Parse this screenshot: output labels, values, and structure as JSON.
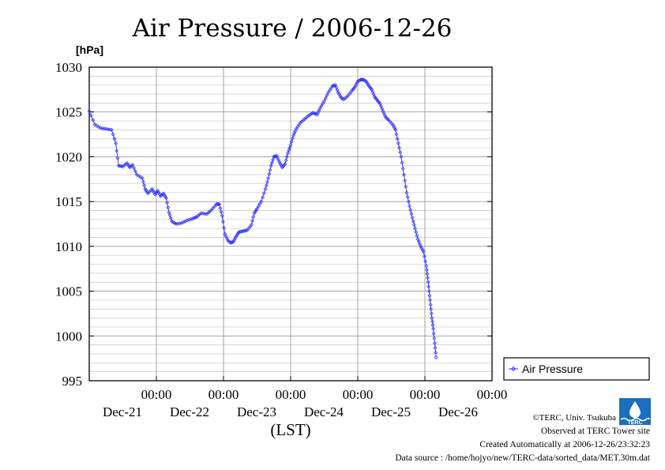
{
  "chart_data": {
    "type": "line",
    "title": "Air Pressure / 2006-12-26",
    "ylabel": "[hPa]",
    "xlabel": "(LST)",
    "ylim": [
      995,
      1030
    ],
    "yticks": [
      995,
      1000,
      1005,
      1010,
      1015,
      1020,
      1025,
      1030
    ],
    "xlim_hours": [
      0,
      144
    ],
    "xticks": [
      {
        "time": "00:00",
        "date": "Dec-21"
      },
      {
        "time": "00:00",
        "date": "Dec-22"
      },
      {
        "time": "00:00",
        "date": "Dec-23"
      },
      {
        "time": "00:00",
        "date": "Dec-24"
      },
      {
        "time": "00:00",
        "date": "Dec-25"
      },
      {
        "time": "00:00",
        "date": "Dec-26"
      }
    ],
    "grid": true,
    "legend_position": "right",
    "series": [
      {
        "name": "Air Pressure",
        "color": "#3333ff",
        "marker": "diamond",
        "points": [
          [
            0.0,
            1025.1
          ],
          [
            2.0,
            1023.6
          ],
          [
            4.0,
            1023.2
          ],
          [
            6.0,
            1023.1
          ],
          [
            8.0,
            1023.0
          ],
          [
            9.5,
            1021.5
          ],
          [
            10.5,
            1019.0
          ],
          [
            12.0,
            1018.9
          ],
          [
            13.5,
            1019.3
          ],
          [
            14.5,
            1018.8
          ],
          [
            15.5,
            1019.1
          ],
          [
            17.0,
            1018.0
          ],
          [
            19.0,
            1017.6
          ],
          [
            20.0,
            1016.4
          ],
          [
            21.0,
            1015.9
          ],
          [
            22.5,
            1016.4
          ],
          [
            23.5,
            1015.8
          ],
          [
            24.5,
            1016.2
          ],
          [
            25.5,
            1015.6
          ],
          [
            26.5,
            1015.9
          ],
          [
            27.5,
            1015.4
          ],
          [
            28.5,
            1013.8
          ],
          [
            29.5,
            1012.8
          ],
          [
            31.0,
            1012.5
          ],
          [
            33.0,
            1012.6
          ],
          [
            35.0,
            1012.9
          ],
          [
            37.0,
            1013.1
          ],
          [
            38.5,
            1013.3
          ],
          [
            40.0,
            1013.7
          ],
          [
            42.0,
            1013.6
          ],
          [
            43.5,
            1014.0
          ],
          [
            45.5,
            1014.7
          ],
          [
            46.5,
            1014.7
          ],
          [
            47.5,
            1013.4
          ],
          [
            48.5,
            1011.4
          ],
          [
            49.5,
            1010.7
          ],
          [
            50.5,
            1010.4
          ],
          [
            51.5,
            1010.5
          ],
          [
            52.5,
            1011.1
          ],
          [
            53.5,
            1011.6
          ],
          [
            55.0,
            1011.7
          ],
          [
            56.5,
            1011.8
          ],
          [
            58.0,
            1012.4
          ],
          [
            59.0,
            1013.7
          ],
          [
            60.0,
            1014.2
          ],
          [
            61.5,
            1015.0
          ],
          [
            63.0,
            1016.4
          ],
          [
            64.0,
            1017.6
          ],
          [
            65.0,
            1019.0
          ],
          [
            66.0,
            1020.0
          ],
          [
            67.0,
            1020.1
          ],
          [
            68.0,
            1019.4
          ],
          [
            69.0,
            1018.8
          ],
          [
            70.0,
            1019.2
          ],
          [
            71.0,
            1020.4
          ],
          [
            72.0,
            1021.3
          ],
          [
            73.0,
            1022.4
          ],
          [
            74.0,
            1023.1
          ],
          [
            75.5,
            1023.8
          ],
          [
            77.0,
            1024.2
          ],
          [
            78.5,
            1024.6
          ],
          [
            80.0,
            1024.9
          ],
          [
            81.5,
            1024.7
          ],
          [
            82.5,
            1025.4
          ],
          [
            84.0,
            1026.2
          ],
          [
            85.5,
            1027.2
          ],
          [
            87.0,
            1027.9
          ],
          [
            88.0,
            1028.0
          ],
          [
            89.0,
            1027.2
          ],
          [
            90.0,
            1026.6
          ],
          [
            91.0,
            1026.4
          ],
          [
            92.5,
            1026.8
          ],
          [
            94.0,
            1027.4
          ],
          [
            95.0,
            1027.8
          ],
          [
            96.0,
            1028.4
          ],
          [
            97.0,
            1028.6
          ],
          [
            98.0,
            1028.6
          ],
          [
            99.0,
            1028.4
          ],
          [
            100.0,
            1027.9
          ],
          [
            101.0,
            1027.5
          ],
          [
            102.0,
            1026.7
          ],
          [
            103.0,
            1026.3
          ],
          [
            104.0,
            1025.9
          ],
          [
            105.0,
            1025.1
          ],
          [
            106.0,
            1024.4
          ],
          [
            107.0,
            1024.1
          ],
          [
            108.5,
            1023.6
          ],
          [
            109.5,
            1023.0
          ],
          [
            110.5,
            1021.5
          ],
          [
            111.5,
            1020.0
          ],
          [
            112.5,
            1018.0
          ],
          [
            113.5,
            1016.0
          ],
          [
            114.5,
            1014.5
          ],
          [
            115.5,
            1013.2
          ],
          [
            116.5,
            1012.0
          ],
          [
            117.5,
            1010.8
          ],
          [
            118.5,
            1010.0
          ],
          [
            119.5,
            1009.4
          ],
          [
            120.5,
            1007.8
          ],
          [
            121.0,
            1006.5
          ],
          [
            121.5,
            1005.0
          ],
          [
            122.0,
            1003.5
          ],
          [
            122.5,
            1002.0
          ],
          [
            123.0,
            1000.8
          ],
          [
            123.5,
            999.2
          ],
          [
            124.0,
            997.6
          ]
        ]
      }
    ]
  },
  "credits": {
    "copyright": "©TERC, Univ. Tsukuba",
    "observed": "Observed at TERC Tower site",
    "created": "Created Automatically at 2006-12-26/23:32:23",
    "source": "Data source : /home/hojyo/new/TERC-data/sorted_data/MET.30m.dat"
  },
  "logo": {
    "text": "TERC",
    "color": "#1a6fc0"
  }
}
